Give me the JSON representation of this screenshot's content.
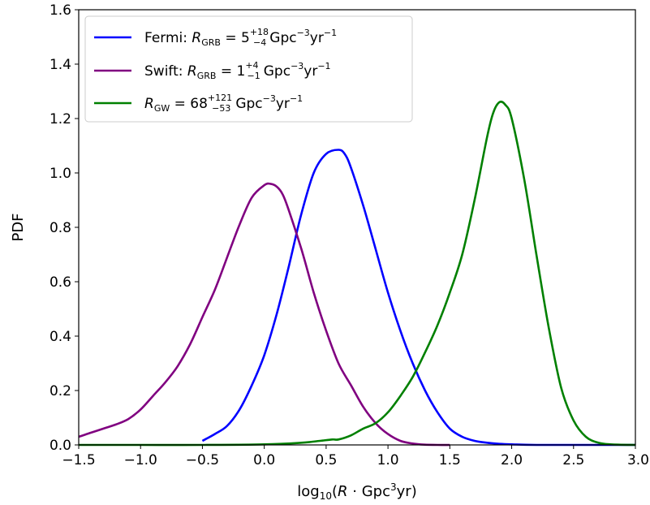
{
  "chart_data": {
    "type": "line",
    "title": "",
    "xlabel": "log10(R · Gpc3yr)",
    "ylabel": "PDF",
    "xlim": [
      -1.5,
      3.0
    ],
    "ylim": [
      0.0,
      1.6
    ],
    "grid": false,
    "legend_position": "top-left",
    "x_ticks": [
      -1.5,
      -1.0,
      -0.5,
      0.0,
      0.5,
      1.0,
      1.5,
      2.0,
      2.5,
      3.0
    ],
    "x_tick_labels": [
      "−1.5",
      "−1.0",
      "−0.5",
      "0.0",
      "0.5",
      "1.0",
      "1.5",
      "2.0",
      "2.5",
      "3.0"
    ],
    "y_ticks": [
      0.0,
      0.2,
      0.4,
      0.6,
      0.8,
      1.0,
      1.2,
      1.4,
      1.6
    ],
    "y_tick_labels": [
      "0.0",
      "0.2",
      "0.4",
      "0.6",
      "0.8",
      "1.0",
      "1.2",
      "1.4",
      "1.6"
    ],
    "series": [
      {
        "name": "Fermi: RGRB = 5+18−4 Gpc−3yr−1",
        "color": "#0000ff",
        "x": [
          -0.5,
          -0.4,
          -0.3,
          -0.2,
          -0.1,
          0.0,
          0.1,
          0.2,
          0.3,
          0.4,
          0.5,
          0.6,
          0.65,
          0.7,
          0.8,
          0.9,
          1.0,
          1.1,
          1.2,
          1.3,
          1.4,
          1.5,
          1.6,
          1.7,
          1.8,
          1.9,
          2.0,
          2.2,
          2.5,
          3.0
        ],
        "y": [
          0.015,
          0.04,
          0.07,
          0.13,
          0.22,
          0.33,
          0.48,
          0.66,
          0.85,
          1.0,
          1.07,
          1.085,
          1.07,
          1.02,
          0.88,
          0.72,
          0.56,
          0.42,
          0.3,
          0.2,
          0.12,
          0.06,
          0.03,
          0.015,
          0.008,
          0.004,
          0.002,
          0.0,
          0.0,
          0.0
        ]
      },
      {
        "name": "Swift: RGRB = 1+4−1 Gpc−3yr−1",
        "color": "#800080",
        "x": [
          -1.5,
          -1.4,
          -1.3,
          -1.2,
          -1.1,
          -1.0,
          -0.9,
          -0.8,
          -0.7,
          -0.6,
          -0.5,
          -0.4,
          -0.3,
          -0.2,
          -0.1,
          0.0,
          0.05,
          0.1,
          0.15,
          0.2,
          0.3,
          0.4,
          0.5,
          0.6,
          0.7,
          0.8,
          0.9,
          1.0,
          1.1,
          1.2,
          1.3,
          1.4,
          1.5
        ],
        "y": [
          0.03,
          0.045,
          0.06,
          0.075,
          0.095,
          0.13,
          0.18,
          0.23,
          0.29,
          0.37,
          0.47,
          0.57,
          0.69,
          0.81,
          0.91,
          0.955,
          0.96,
          0.95,
          0.92,
          0.86,
          0.72,
          0.56,
          0.42,
          0.3,
          0.22,
          0.14,
          0.08,
          0.04,
          0.015,
          0.005,
          0.001,
          0.0,
          0.0
        ]
      },
      {
        "name": "RGW = 68+121−53 Gpc−3yr−1",
        "color": "#008000",
        "x": [
          -1.5,
          -1.0,
          -0.5,
          0.0,
          0.3,
          0.45,
          0.55,
          0.6,
          0.7,
          0.8,
          0.9,
          1.0,
          1.1,
          1.2,
          1.3,
          1.4,
          1.5,
          1.6,
          1.7,
          1.8,
          1.85,
          1.9,
          1.95,
          2.0,
          2.1,
          2.2,
          2.3,
          2.4,
          2.5,
          2.6,
          2.7,
          2.8,
          3.0
        ],
        "y": [
          0.0,
          0.0,
          0.0,
          0.002,
          0.008,
          0.015,
          0.02,
          0.02,
          0.035,
          0.06,
          0.08,
          0.12,
          0.18,
          0.25,
          0.34,
          0.44,
          0.56,
          0.7,
          0.9,
          1.13,
          1.22,
          1.26,
          1.25,
          1.2,
          0.98,
          0.7,
          0.43,
          0.21,
          0.09,
          0.03,
          0.008,
          0.002,
          0.0
        ]
      }
    ]
  },
  "legend": {
    "entries": [
      {
        "prefix": "Fermi: ",
        "symbol": "R",
        "sub": "GRB",
        "eq": " = 5",
        "sup": "+18",
        "low": "−4",
        "unit": "Gpc",
        "unit_sup": "−3",
        "unit2": "yr",
        "unit2_sup": "−1"
      },
      {
        "prefix": "Swift: ",
        "symbol": "R",
        "sub": "GRB",
        "eq": " = 1",
        "sup": "+4",
        "low": "−1",
        "unit": "Gpc",
        "unit_sup": "−3",
        "unit2": "yr",
        "unit2_sup": "−1"
      },
      {
        "prefix": "",
        "symbol": "R",
        "sub": "GW",
        "eq": " = 68",
        "sup": "+121",
        "low": "−53",
        "unit": "Gpc",
        "unit_sup": "−3",
        "unit2": "yr",
        "unit2_sup": "−1"
      }
    ]
  },
  "axis_label_parts": {
    "x_prefix": "log",
    "x_sub": "10",
    "x_open": "(",
    "x_sym": "R",
    "x_mid": " · Gpc",
    "x_sup": "3",
    "x_end": "yr)"
  }
}
